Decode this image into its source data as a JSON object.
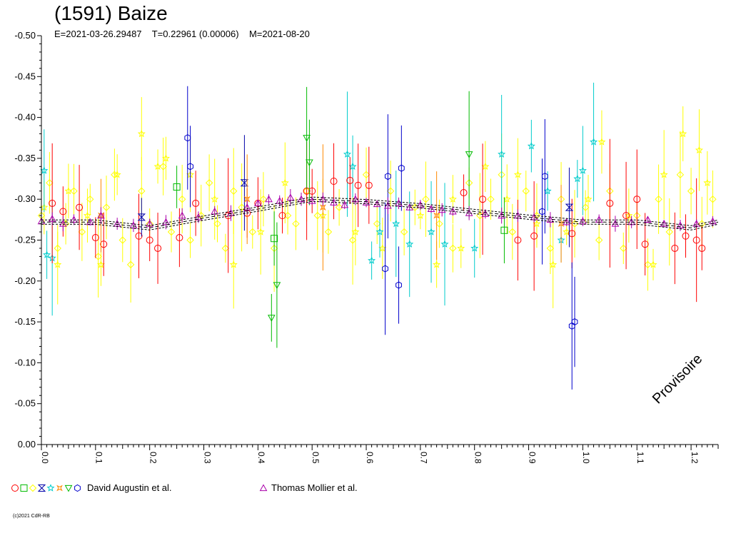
{
  "chart_data": {
    "type": "scatter",
    "title": "(1591) Baize",
    "subtitle": "E=2021-03-26.29487    T=0.22961 (0.00006)    M=2021-08-20",
    "xlabel": "",
    "ylabel": "",
    "xlim": [
      0.0,
      1.25
    ],
    "ylim": [
      0.0,
      -0.5
    ],
    "y_axis_inverted": true,
    "grid": false,
    "x_ticks": [
      "0.0",
      "0.1",
      "0.2",
      "0.3",
      "0.4",
      "0.5",
      "0.6",
      "0.7",
      "0.8",
      "0.9",
      "1.0",
      "1.1",
      "1.2"
    ],
    "y_ticks": [
      "0.00",
      "-0.05",
      "-0.10",
      "-0.15",
      "-0.20",
      "-0.25",
      "-0.30",
      "-0.35",
      "-0.40",
      "-0.45",
      "-0.50"
    ],
    "fit_curve": {
      "x": [
        0.0,
        0.1,
        0.2,
        0.3,
        0.4,
        0.5,
        0.6,
        0.7,
        0.8,
        0.9,
        1.0,
        1.1,
        1.2,
        1.25
      ],
      "y": [
        -0.272,
        -0.272,
        -0.265,
        -0.277,
        -0.288,
        -0.3,
        -0.297,
        -0.292,
        -0.285,
        -0.278,
        -0.272,
        -0.272,
        -0.265,
        -0.272
      ]
    },
    "series": [
      {
        "group": "David Augustin et al.",
        "marker": "circle",
        "color": "#ff0000",
        "x": [
          0.02,
          0.04,
          0.07,
          0.1,
          0.115,
          0.18,
          0.2,
          0.215,
          0.255,
          0.285,
          0.345,
          0.38,
          0.4,
          0.445,
          0.49,
          0.5,
          0.54,
          0.57,
          0.585,
          0.605,
          0.78,
          0.815,
          0.88,
          0.91,
          0.98,
          1.05,
          1.08,
          1.1,
          1.115,
          1.17,
          1.19,
          1.21,
          1.22
        ],
        "y": [
          -0.295,
          -0.285,
          -0.29,
          -0.253,
          -0.245,
          -0.255,
          -0.25,
          -0.24,
          -0.253,
          -0.295,
          -0.28,
          -0.283,
          -0.295,
          -0.28,
          -0.31,
          -0.31,
          -0.322,
          -0.323,
          -0.317,
          -0.317,
          -0.308,
          -0.3,
          -0.25,
          -0.255,
          -0.258,
          -0.295,
          -0.28,
          -0.3,
          -0.245,
          -0.24,
          -0.255,
          -0.25,
          -0.24
        ]
      },
      {
        "group": "David Augustin et al.",
        "marker": "square",
        "color": "#00bb00",
        "x": [
          0.25,
          0.43,
          0.855
        ],
        "y": [
          -0.315,
          -0.252,
          -0.262
        ]
      },
      {
        "group": "David Augustin et al.",
        "marker": "diamond",
        "color": "#ffff00",
        "x": [
          0.0,
          0.015,
          0.03,
          0.045,
          0.06,
          0.075,
          0.09,
          0.105,
          0.12,
          0.135,
          0.15,
          0.165,
          0.185,
          0.2,
          0.225,
          0.24,
          0.26,
          0.275,
          0.295,
          0.31,
          0.325,
          0.34,
          0.355,
          0.37,
          0.39,
          0.41,
          0.43,
          0.455,
          0.47,
          0.49,
          0.51,
          0.53,
          0.55,
          0.575,
          0.6,
          0.62,
          0.645,
          0.67,
          0.69,
          0.71,
          0.735,
          0.76,
          0.79,
          0.81,
          0.83,
          0.85,
          0.87,
          0.895,
          0.915,
          0.94,
          0.96,
          0.985,
          1.005,
          1.03,
          1.05,
          1.075,
          1.1,
          1.12,
          1.14,
          1.16,
          1.18,
          1.2,
          1.22,
          1.24
        ],
        "y": [
          -0.28,
          -0.32,
          -0.24,
          -0.27,
          -0.31,
          -0.26,
          -0.3,
          -0.23,
          -0.29,
          -0.33,
          -0.25,
          -0.22,
          -0.31,
          -0.27,
          -0.34,
          -0.26,
          -0.3,
          -0.25,
          -0.28,
          -0.32,
          -0.27,
          -0.24,
          -0.31,
          -0.29,
          -0.26,
          -0.3,
          -0.24,
          -0.28,
          -0.27,
          -0.31,
          -0.28,
          -0.26,
          -0.29,
          -0.25,
          -0.33,
          -0.27,
          -0.31,
          -0.26,
          -0.29,
          -0.3,
          -0.27,
          -0.24,
          -0.32,
          -0.28,
          -0.3,
          -0.33,
          -0.26,
          -0.31,
          -0.28,
          -0.24,
          -0.3,
          -0.27,
          -0.29,
          -0.25,
          -0.31,
          -0.24,
          -0.28,
          -0.22,
          -0.3,
          -0.26,
          -0.33,
          -0.31,
          -0.27,
          -0.3
        ]
      },
      {
        "group": "David Augustin et al.",
        "marker": "hourglass",
        "color": "#0000aa",
        "x": [
          0.185,
          0.375,
          0.975
        ],
        "y": [
          -0.278,
          -0.32,
          -0.29
        ]
      },
      {
        "group": "David Augustin et al.",
        "marker": "star",
        "color": "#00cccc",
        "x": [
          0.005,
          0.01,
          0.02,
          0.565,
          0.575,
          0.61,
          0.625,
          0.655,
          0.68,
          0.72,
          0.745,
          0.8,
          0.85,
          0.905,
          0.935,
          0.96,
          0.99,
          1.0,
          1.02
        ],
        "y": [
          -0.335,
          -0.232,
          -0.228,
          -0.355,
          -0.34,
          -0.225,
          -0.26,
          -0.27,
          -0.245,
          -0.26,
          -0.245,
          -0.24,
          -0.355,
          -0.365,
          -0.31,
          -0.25,
          -0.325,
          -0.335,
          -0.37
        ]
      },
      {
        "group": "David Augustin et al.",
        "marker": "star",
        "color": "#ffff00",
        "x": [
          0.005,
          0.03,
          0.05,
          0.085,
          0.11,
          0.14,
          0.185,
          0.215,
          0.23,
          0.275,
          0.32,
          0.355,
          0.405,
          0.45,
          0.52,
          0.58,
          0.63,
          0.7,
          0.73,
          0.76,
          0.775,
          0.82,
          0.86,
          0.88,
          0.915,
          0.945,
          0.97,
          1.01,
          1.035,
          1.085,
          1.13,
          1.15,
          1.185,
          1.215,
          1.23
        ],
        "y": [
          -0.29,
          -0.22,
          -0.31,
          -0.28,
          -0.22,
          -0.33,
          -0.38,
          -0.34,
          -0.35,
          -0.33,
          -0.3,
          -0.22,
          -0.26,
          -0.32,
          -0.28,
          -0.26,
          -0.24,
          -0.28,
          -0.22,
          -0.3,
          -0.24,
          -0.34,
          -0.3,
          -0.33,
          -0.27,
          -0.22,
          -0.26,
          -0.3,
          -0.37,
          -0.28,
          -0.22,
          -0.33,
          -0.38,
          -0.36,
          -0.32
        ]
      },
      {
        "group": "David Augustin et al.",
        "marker": "cross",
        "color": "#ff8800",
        "x": [
          0.11,
          0.38,
          0.52,
          0.73,
          0.96
        ],
        "y": [
          -0.28,
          -0.3,
          -0.29,
          -0.28,
          -0.27
        ]
      },
      {
        "group": "David Augustin et al.",
        "marker": "triangle-down",
        "color": "#00bb00",
        "x": [
          0.425,
          0.435,
          0.49,
          0.495,
          0.79
        ],
        "y": [
          -0.155,
          -0.195,
          -0.375,
          -0.345,
          -0.355
        ]
      },
      {
        "group": "David Augustin et al.",
        "marker": "hexagon",
        "color": "#0000cc",
        "x": [
          0.27,
          0.275,
          0.635,
          0.64,
          0.66,
          0.665,
          0.925,
          0.93,
          0.98,
          0.985
        ],
        "y": [
          -0.375,
          -0.34,
          -0.215,
          -0.328,
          -0.195,
          -0.338,
          -0.285,
          -0.328,
          -0.145,
          -0.15
        ]
      },
      {
        "group": "Thomas Mollier et al.",
        "marker": "triangle",
        "color": "#aa00aa",
        "x": [
          0.0,
          0.02,
          0.04,
          0.06,
          0.09,
          0.11,
          0.14,
          0.17,
          0.2,
          0.23,
          0.26,
          0.29,
          0.32,
          0.35,
          0.38,
          0.4,
          0.42,
          0.44,
          0.46,
          0.48,
          0.5,
          0.52,
          0.54,
          0.56,
          0.58,
          0.6,
          0.62,
          0.64,
          0.66,
          0.68,
          0.7,
          0.72,
          0.74,
          0.76,
          0.79,
          0.82,
          0.85,
          0.88,
          0.91,
          0.94,
          0.97,
          1.0,
          1.03,
          1.06,
          1.09,
          1.12,
          1.15,
          1.18,
          1.21,
          1.24
        ],
        "y": [
          -0.273,
          -0.276,
          -0.27,
          -0.275,
          -0.272,
          -0.28,
          -0.27,
          -0.268,
          -0.27,
          -0.272,
          -0.28,
          -0.278,
          -0.285,
          -0.283,
          -0.29,
          -0.295,
          -0.3,
          -0.298,
          -0.302,
          -0.3,
          -0.298,
          -0.3,
          -0.296,
          -0.293,
          -0.3,
          -0.296,
          -0.294,
          -0.292,
          -0.295,
          -0.29,
          -0.293,
          -0.288,
          -0.287,
          -0.285,
          -0.283,
          -0.282,
          -0.28,
          -0.28,
          -0.278,
          -0.275,
          -0.272,
          -0.273,
          -0.275,
          -0.27,
          -0.272,
          -0.275,
          -0.27,
          -0.268,
          -0.27,
          -0.273
        ]
      }
    ]
  },
  "stamp": "Provisoire",
  "legend": {
    "group_a_label": "David Augustin et al.",
    "group_b_label": "Thomas Mollier et al.",
    "group_a_symbols": [
      {
        "marker": "circle",
        "color": "#ff0000"
      },
      {
        "marker": "square",
        "color": "#00bb00"
      },
      {
        "marker": "diamond",
        "color": "#ffff00"
      },
      {
        "marker": "hourglass",
        "color": "#0000aa"
      },
      {
        "marker": "star",
        "color": "#00cccc"
      },
      {
        "marker": "cross",
        "color": "#ff8800"
      },
      {
        "marker": "triangle-down",
        "color": "#00bb00"
      },
      {
        "marker": "hexagon",
        "color": "#0000cc"
      }
    ],
    "group_b_symbols": [
      {
        "marker": "triangle",
        "color": "#aa00aa"
      }
    ]
  },
  "copyright": "(c)2021 CdR-RB"
}
